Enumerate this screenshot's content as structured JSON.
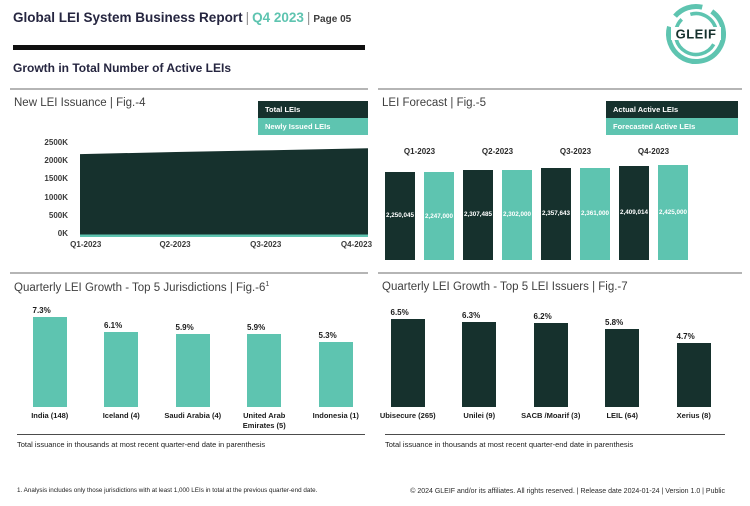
{
  "header": {
    "title": "Global LEI System Business Report",
    "separator": "|",
    "period": "Q4 2023",
    "page_label": "Page 05",
    "logo_text": "GLEIF"
  },
  "section": {
    "title": "Growth in Total Number of Active LEIs"
  },
  "footer": {
    "footnote": "1. Analysis includes only those jurisdictions with at least 1,000 LEIs in total at the previous quarter-end date.",
    "copyright": "© 2024 GLEIF and/or its affiliates. All rights reserved.  | Release date 2024-01-24 | Version 1.0 | Public"
  },
  "colors": {
    "teal": "#5EC4B0",
    "dark": "#16312D",
    "header_navy": "#262640",
    "panel_border": "#b5b5b5"
  },
  "chart_data": [
    {
      "id": "new_lei_issuance",
      "type": "area",
      "title": "New LEI Issuance | Fig.-4",
      "categories": [
        "Q1-2023",
        "Q2-2023",
        "Q3-2023",
        "Q4-2023"
      ],
      "series": [
        {
          "name": "Total LEIs",
          "color": "#16312D",
          "values": [
            2250045,
            2307485,
            2357643,
            2409014
          ]
        },
        {
          "name": "Newly Issued LEIs",
          "color": "#5EC4B0",
          "values": [
            70000,
            70000,
            70000,
            70000
          ],
          "estimated": true
        }
      ],
      "ylim": [
        0,
        2500000
      ],
      "yticks": [
        "2500K",
        "2000K",
        "1500K",
        "1000K",
        "500K",
        "0K"
      ],
      "legend_position": "top-right",
      "grid": false
    },
    {
      "id": "lei_forecast",
      "type": "bar",
      "title": "LEI Forecast | Fig.-5",
      "categories": [
        "Q1-2023",
        "Q2-2023",
        "Q3-2023",
        "Q4-2023"
      ],
      "series": [
        {
          "name": "Actual Active LEIs",
          "color": "#16312D",
          "values": [
            2250045,
            2307485,
            2357643,
            2409014
          ],
          "labels": [
            "2,250,045",
            "2,307,485",
            "2,357,643",
            "2,409,014"
          ]
        },
        {
          "name": "Forecasted Active LEIs",
          "color": "#5EC4B0",
          "values": [
            2247000,
            2302000,
            2361000,
            2425000
          ],
          "labels": [
            "2,247,000",
            "2,302,000",
            "2,361,000",
            "2,425,000"
          ]
        }
      ],
      "legend_position": "top-right",
      "grid": false
    },
    {
      "id": "top5_jurisdictions",
      "type": "bar",
      "title": "Quarterly LEI Growth - Top 5 Jurisdictions | Fig.-6",
      "title_superscript": "1",
      "categories": [
        "India (148)",
        "Iceland (4)",
        "Saudi Arabia (4)",
        "United Arab Emirates (5)",
        "Indonesia (1)"
      ],
      "values": [
        7.3,
        6.1,
        5.9,
        5.9,
        5.3
      ],
      "labels": [
        "7.3%",
        "6.1%",
        "5.9%",
        "5.9%",
        "5.3%"
      ],
      "bar_color": "#5EC4B0",
      "note": "Total issuance in thousands at most recent quarter-end date in parenthesis",
      "grid": false
    },
    {
      "id": "top5_issuers",
      "type": "bar",
      "title": "Quarterly LEI Growth - Top 5 LEI Issuers | Fig.-7",
      "categories": [
        "Ubisecure (265)",
        "Unilei (9)",
        "SACB /Moarif (3)",
        "LEIL (64)",
        "Xerius (8)"
      ],
      "values": [
        6.5,
        6.3,
        6.2,
        5.8,
        4.7
      ],
      "labels": [
        "6.5%",
        "6.3%",
        "6.2%",
        "5.8%",
        "4.7%"
      ],
      "bar_color": "#16312D",
      "note": "Total issuance in thousands at most recent quarter-end date in parenthesis",
      "grid": false
    }
  ]
}
